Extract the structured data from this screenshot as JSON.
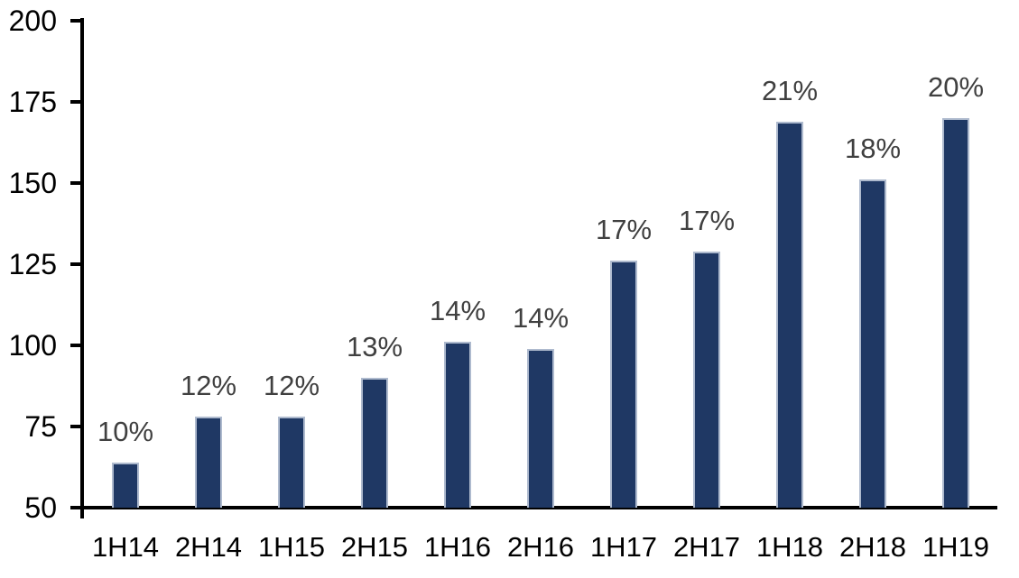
{
  "chart_data": {
    "type": "bar",
    "title": "",
    "xlabel": "",
    "ylabel": "",
    "categories": [
      "1H14",
      "2H14",
      "1H15",
      "2H15",
      "1H16",
      "2H16",
      "1H17",
      "2H17",
      "1H18",
      "2H18",
      "1H19"
    ],
    "values": [
      64,
      78,
      78,
      90,
      101,
      99,
      126,
      129,
      169,
      151,
      170
    ],
    "data_labels": [
      "10%",
      "12%",
      "12%",
      "13%",
      "14%",
      "14%",
      "17%",
      "17%",
      "21%",
      "18%",
      "20%"
    ],
    "ylim": [
      50,
      200
    ],
    "yticks": [
      "200",
      "175",
      "150",
      "125",
      "100",
      "75",
      "50"
    ],
    "ytick_values": [
      200,
      175,
      150,
      125,
      100,
      75,
      50
    ],
    "grid": false,
    "legend_position": "none",
    "colors": {
      "bar_fill": "#1F3864",
      "bar_border": "#AEBACE",
      "data_label": "#404040",
      "axis_text": "#000000",
      "axis_line": "#000000",
      "background": "#FFFFFF"
    }
  }
}
